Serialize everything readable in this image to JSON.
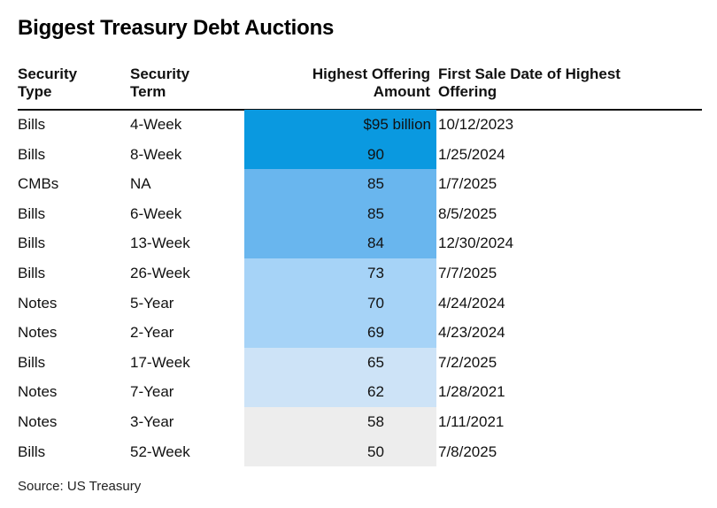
{
  "title": "Biggest Treasury Debt Auctions",
  "source": "Source: US Treasury",
  "columns": {
    "type_line1": "Security",
    "type_line2": "Type",
    "term_line1": "Security",
    "term_line2": "Term",
    "amount_line1": "Highest Offering",
    "amount_line2": "Amount",
    "date_line1": "First Sale Date of Highest",
    "date_line2": "Offering"
  },
  "colors": {
    "tier_95_90": "#0a99e0",
    "tier_85_84": "#69b6ee",
    "tier_73_69": "#a6d3f7",
    "tier_65_62": "#cde3f7",
    "tier_58_50": "#ededed"
  },
  "chart_data": {
    "type": "table",
    "title": "Biggest Treasury Debt Auctions",
    "columns": [
      "Security Type",
      "Security Term",
      "Highest Offering Amount",
      "First Sale Date of Highest Offering"
    ],
    "rows": [
      {
        "type": "Bills",
        "term": "4-Week",
        "amount": 95,
        "amount_label": "$95 billion",
        "date": "10/12/2023",
        "color": "#0a99e0"
      },
      {
        "type": "Bills",
        "term": "8-Week",
        "amount": 90,
        "amount_label": "90",
        "date": "1/25/2024",
        "color": "#0a99e0"
      },
      {
        "type": "CMBs",
        "term": "NA",
        "amount": 85,
        "amount_label": "85",
        "date": "1/7/2025",
        "color": "#69b6ee"
      },
      {
        "type": "Bills",
        "term": "6-Week",
        "amount": 85,
        "amount_label": "85",
        "date": "8/5/2025",
        "color": "#69b6ee"
      },
      {
        "type": "Bills",
        "term": "13-Week",
        "amount": 84,
        "amount_label": "84",
        "date": "12/30/2024",
        "color": "#69b6ee"
      },
      {
        "type": "Bills",
        "term": "26-Week",
        "amount": 73,
        "amount_label": "73",
        "date": "7/7/2025",
        "color": "#a6d3f7"
      },
      {
        "type": "Notes",
        "term": "5-Year",
        "amount": 70,
        "amount_label": "70",
        "date": "4/24/2024",
        "color": "#a6d3f7"
      },
      {
        "type": "Notes",
        "term": "2-Year",
        "amount": 69,
        "amount_label": "69",
        "date": "4/23/2024",
        "color": "#a6d3f7"
      },
      {
        "type": "Bills",
        "term": "17-Week",
        "amount": 65,
        "amount_label": "65",
        "date": "7/2/2025",
        "color": "#cde3f7"
      },
      {
        "type": "Notes",
        "term": "7-Year",
        "amount": 62,
        "amount_label": "62",
        "date": "1/28/2021",
        "color": "#cde3f7"
      },
      {
        "type": "Notes",
        "term": "3-Year",
        "amount": 58,
        "amount_label": "58",
        "date": "1/11/2021",
        "color": "#ededed"
      },
      {
        "type": "Bills",
        "term": "52-Week",
        "amount": 50,
        "amount_label": "50",
        "date": "7/8/2025",
        "color": "#ededed"
      }
    ]
  }
}
